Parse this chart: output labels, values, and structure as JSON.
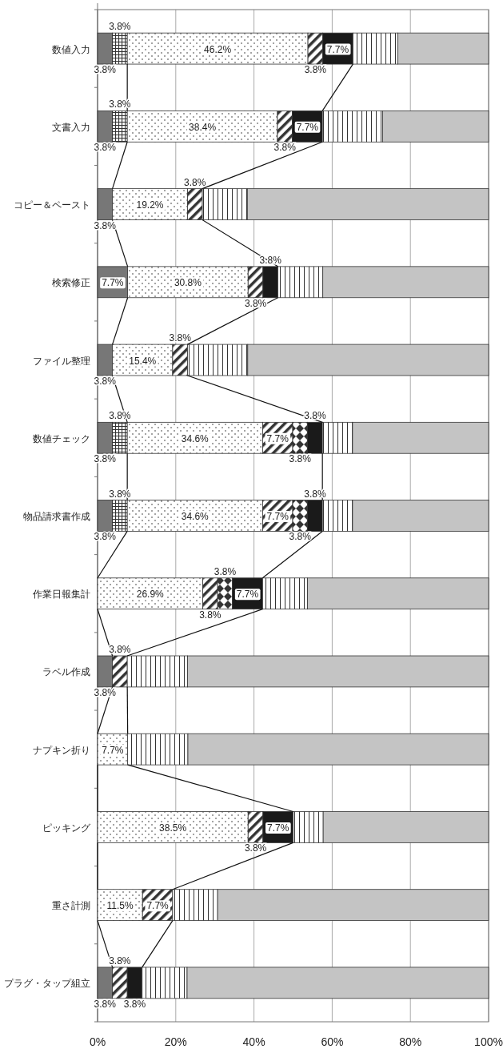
{
  "chart_data": {
    "type": "bar",
    "stacked": true,
    "orientation": "horizontal",
    "categories": [
      "数値入力",
      "文書入力",
      "コピー＆ペースト",
      "検索修正",
      "ファイル整理",
      "数値チェック",
      "物品請求書作成",
      "作業日報集計",
      "ラベル作成",
      "ナプキン折り",
      "ピッキング",
      "重さ計測",
      "プラグ・タップ組立"
    ],
    "xlim": [
      0,
      100
    ],
    "xticks": [
      {
        "value": 0,
        "label": "0%"
      },
      {
        "value": 20,
        "label": "20%"
      },
      {
        "value": 40,
        "label": "40%"
      },
      {
        "value": 60,
        "label": "60%"
      },
      {
        "value": 80,
        "label": "80%"
      },
      {
        "value": 100,
        "label": "100%"
      }
    ],
    "grid": "x",
    "series": [
      {
        "color": "#777777",
        "values": [
          3.8,
          3.8,
          3.8,
          7.7,
          3.8,
          3.8,
          3.8,
          null,
          3.8,
          null,
          null,
          null,
          3.8
        ],
        "value_labels": [
          "3.8%",
          "3.8%",
          "3.8%",
          "7.7%",
          "3.8%",
          "3.8%",
          "3.8%",
          null,
          "3.8%",
          null,
          null,
          null,
          "3.8%"
        ]
      },
      {
        "color": "#333333",
        "values": [
          3.8,
          3.8,
          null,
          null,
          null,
          3.8,
          3.8,
          null,
          null,
          null,
          null,
          null,
          null
        ],
        "value_labels": [
          "3.8%",
          "3.8%",
          null,
          null,
          null,
          "3.8%",
          "3.8%",
          null,
          null,
          null,
          null,
          null,
          null
        ]
      },
      {
        "color": "#333333",
        "values": [
          46.2,
          38.4,
          19.2,
          30.8,
          15.4,
          34.6,
          34.6,
          26.9,
          null,
          7.7,
          38.5,
          11.5,
          null
        ],
        "value_labels": [
          "46.2%",
          "38.4%",
          "19.2%",
          "30.8%",
          "15.4%",
          "34.6%",
          "34.6%",
          "26.9%",
          null,
          "7.7%",
          "38.5%",
          "11.5%",
          null
        ]
      },
      {
        "color": "#333333",
        "values": [
          3.8,
          3.8,
          3.8,
          3.8,
          3.8,
          7.7,
          7.7,
          3.8,
          3.8,
          null,
          3.8,
          7.7,
          3.8
        ],
        "value_labels": [
          "3.8%",
          "3.8%",
          "3.8%",
          "3.8%",
          "3.8%",
          "7.7%",
          "7.7%",
          "3.8%",
          "3.8%",
          null,
          "3.8%",
          "7.7%",
          "3.8%"
        ]
      },
      {
        "color": "#333333",
        "values": [
          null,
          null,
          null,
          null,
          null,
          3.8,
          3.8,
          3.8,
          null,
          null,
          null,
          null,
          null
        ],
        "value_labels": [
          null,
          null,
          null,
          null,
          null,
          "3.8%",
          "3.8%",
          "3.8%",
          null,
          null,
          null,
          null,
          null
        ]
      },
      {
        "color": "#1a1a1a",
        "values": [
          7.7,
          7.7,
          null,
          3.8,
          null,
          3.8,
          3.8,
          7.7,
          null,
          null,
          7.7,
          null,
          3.8
        ],
        "value_labels": [
          "7.7%",
          "7.7%",
          null,
          "3.8%",
          null,
          "3.8%",
          "3.8%",
          "7.7%",
          null,
          null,
          "7.7%",
          null,
          "3.8%"
        ]
      },
      {
        "color": "#333333",
        "values": [
          11.5,
          15.4,
          11.5,
          11.5,
          15.4,
          7.7,
          7.7,
          11.5,
          15.4,
          15.4,
          7.7,
          11.5,
          11.5
        ]
      },
      {
        "color": "#c4c4c4",
        "values": [
          23.2,
          27.1,
          61.7,
          42.4,
          61.6,
          34.8,
          34.8,
          46.3,
          77.0,
          76.9,
          42.3,
          69.3,
          77.1
        ]
      }
    ]
  }
}
